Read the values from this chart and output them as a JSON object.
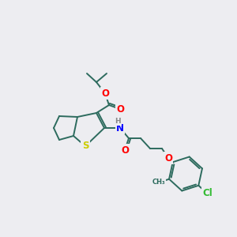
{
  "bg_color": "#ededf1",
  "bond_color": "#2d6b5e",
  "atom_colors": {
    "O": "#ff0000",
    "N": "#0000ff",
    "S": "#cccc00",
    "Cl": "#33bb33",
    "C": "#2d6b5e",
    "H": "#888888"
  },
  "font_size": 7.5,
  "bond_width": 1.4,
  "double_sep": 2.2
}
